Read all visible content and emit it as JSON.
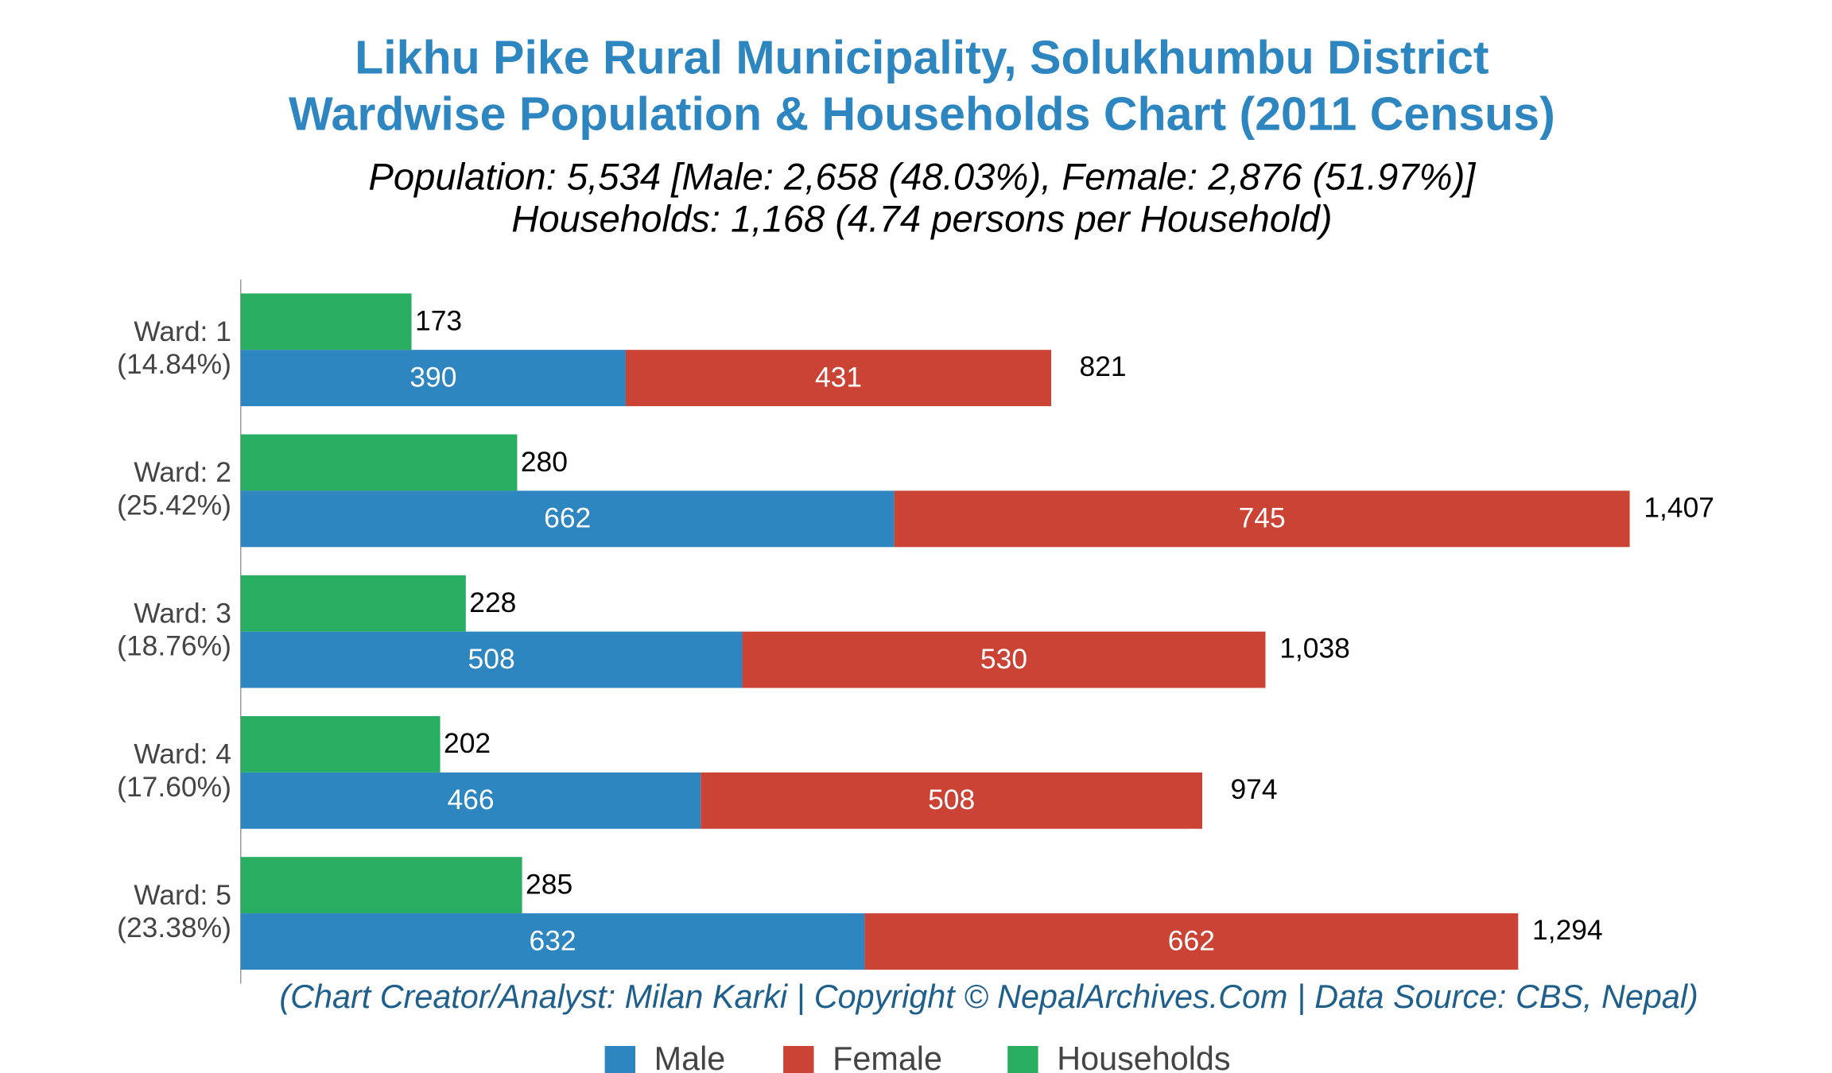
{
  "chart_data": {
    "type": "bar",
    "orientation": "horizontal",
    "title": [
      "Likhu Pike Rural Municipality, Solukhumbu District",
      "Wardwise Population & Households Chart (2011 Census)"
    ],
    "subtitle": [
      "Population: 5,534 [Male: 2,658 (48.03%), Female: 2,876 (51.97%)]",
      "Households: 1,168 (4.74 persons per Household)"
    ],
    "footer": "(Chart Creator/Analyst: Milan Karki | Copyright © NepalArchives.Com | Data Source: CBS, Nepal)",
    "categories": [
      "Ward: 1",
      "Ward: 2",
      "Ward: 3",
      "Ward: 4",
      "Ward: 5"
    ],
    "category_shares": [
      "(14.84%)",
      "(25.42%)",
      "(18.76%)",
      "(17.60%)",
      "(23.38%)"
    ],
    "series": [
      {
        "name": "Male",
        "color": "#2e86c1",
        "values": [
          390,
          662,
          508,
          466,
          632
        ],
        "stack": "population"
      },
      {
        "name": "Female",
        "color": "#cb4335",
        "values": [
          431,
          745,
          530,
          508,
          662
        ],
        "stack": "population"
      },
      {
        "name": "Households",
        "color": "#27ae60",
        "values": [
          173,
          280,
          228,
          202,
          285
        ],
        "stack": "households"
      }
    ],
    "totals": {
      "values": [
        821,
        1407,
        1038,
        974,
        1294
      ],
      "value_labels": [
        "821",
        "1,407",
        "1,038",
        "974",
        "1,294"
      ]
    },
    "xlim": [
      0,
      1600
    ],
    "legend": "bottom"
  }
}
